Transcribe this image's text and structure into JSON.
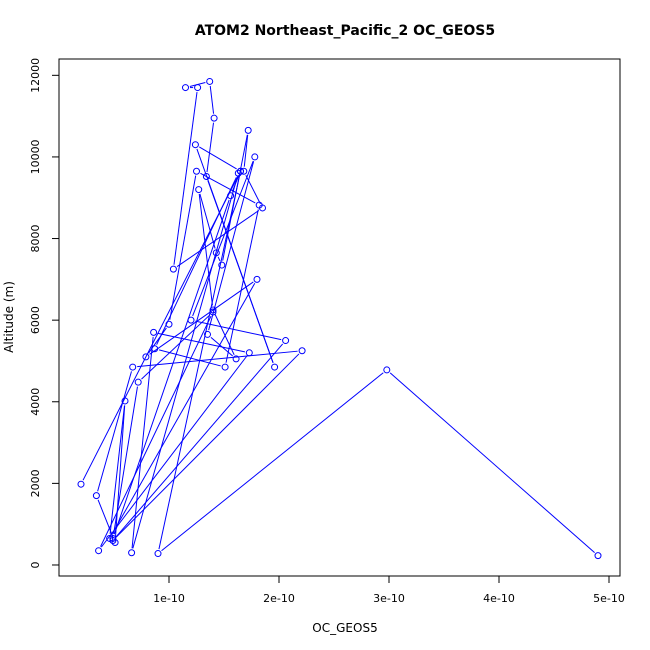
{
  "chart_data": {
    "type": "line",
    "title": "ATOM2 Northeast_Pacific_2 OC_GEOS5",
    "xlabel": "OC_GEOS5",
    "ylabel": "Altitude (m)",
    "xlim": [
      0.0,
      5.1e-10
    ],
    "ylim": [
      -270,
      12400
    ],
    "grid": false,
    "line_color": "#0000ff",
    "marker": "open-circle",
    "x_ticks": [
      {
        "value": 1e-10,
        "label": "1e-10"
      },
      {
        "value": 2e-10,
        "label": "2e-10"
      },
      {
        "value": 3e-10,
        "label": "3e-10"
      },
      {
        "value": 4e-10,
        "label": "4e-10"
      },
      {
        "value": 5e-10,
        "label": "5e-10"
      }
    ],
    "y_ticks": [
      {
        "value": 0,
        "label": "0"
      },
      {
        "value": 2000,
        "label": "2000"
      },
      {
        "value": 4000,
        "label": "4000"
      },
      {
        "value": 6000,
        "label": "6000"
      },
      {
        "value": 8000,
        "label": "8000"
      },
      {
        "value": 10000,
        "label": "10000"
      },
      {
        "value": 12000,
        "label": "12000"
      }
    ],
    "series": [
      {
        "x": [
          4.9e-10,
          2.98e-10,
          9e-11,
          1.65e-10,
          1.24e-10,
          1.96e-10,
          1.34e-10,
          1.41e-10,
          1.37e-10,
          1.15e-10,
          1.26e-10,
          1.04e-10,
          1.85e-10,
          1.68e-10,
          1.72e-10,
          1.48e-10,
          1.43e-10,
          1.27e-10,
          1.4e-10,
          1.61e-10,
          1.35e-10,
          1.78e-10,
          1.2e-10,
          2.06e-10,
          4.9e-11,
          2.21e-10,
          6.7e-11,
          3.4e-11,
          5.1e-11,
          6e-11,
          4.6e-11,
          1.8e-10,
          7.9e-11,
          1e-10,
          1.25e-10,
          1.82e-10,
          1.51e-10,
          8.7e-11,
          1.63e-10,
          6.6e-11,
          8.6e-11,
          1.73e-10,
          3.6e-11,
          1.4e-10,
          7.2e-11,
          4.9e-11,
          1.56e-10,
          1.65e-10,
          2e-11
        ],
        "y": [
          230,
          4780,
          280,
          9650,
          10300,
          4850,
          9520,
          10950,
          11850,
          11700,
          11700,
          7250,
          8750,
          9650,
          10650,
          7350,
          7650,
          9200,
          6250,
          5050,
          5650,
          10000,
          6000,
          5500,
          600,
          5250,
          4850,
          1700,
          550,
          4020,
          650,
          7000,
          5100,
          5900,
          9650,
          8820,
          4850,
          5300,
          9600,
          300,
          5700,
          5200,
          350,
          6200,
          4480,
          650,
          9050,
          9650,
          1980
        ]
      }
    ]
  }
}
